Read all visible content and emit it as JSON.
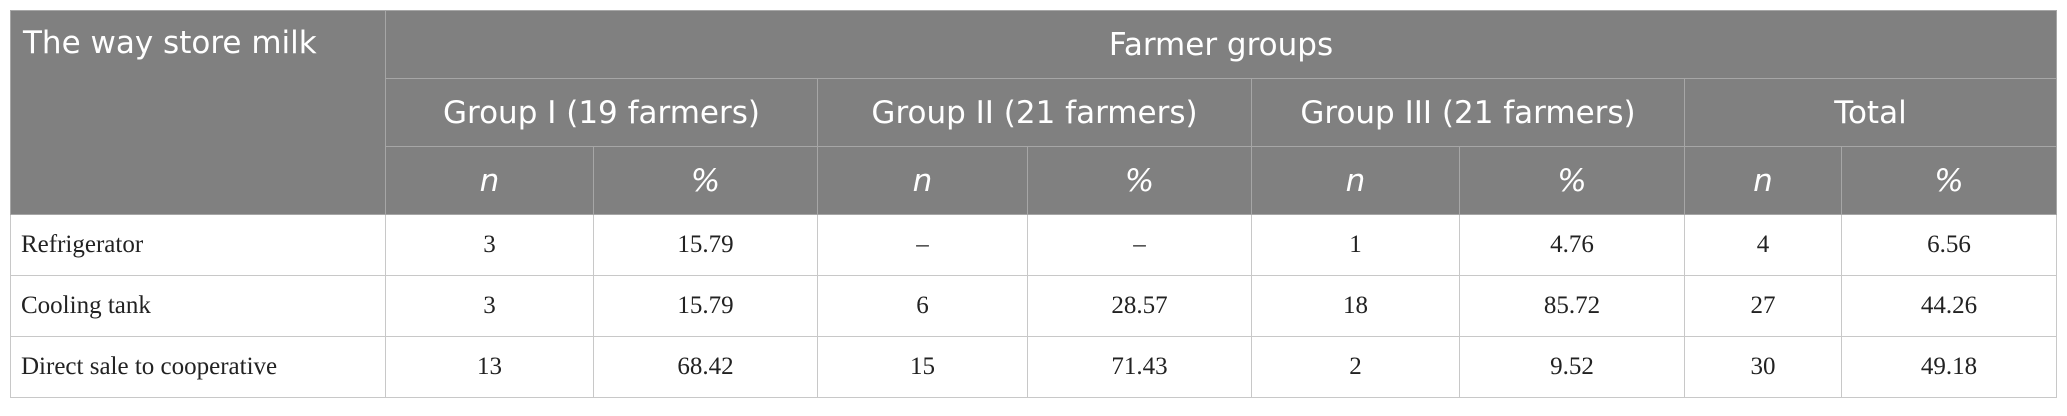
{
  "table": {
    "title": "The way store milk",
    "group_header": "Farmer groups",
    "groups": [
      "Group I (19 farmers)",
      "Group II (21 farmers)",
      "Group III (21 farmers)",
      "Total"
    ],
    "subheaders": [
      "n",
      "%"
    ],
    "rows": [
      {
        "label": "Refrigerator",
        "cells": [
          "3",
          "15.79",
          "–",
          "–",
          "1",
          "4.76",
          "4",
          "6.56"
        ]
      },
      {
        "label": "Cooling tank",
        "cells": [
          "3",
          "15.79",
          "6",
          "28.57",
          "18",
          "85.72",
          "27",
          "44.26"
        ]
      },
      {
        "label": "Direct sale to cooperative",
        "cells": [
          "13",
          "68.42",
          "15",
          "71.43",
          "2",
          "9.52",
          "30",
          "49.18"
        ]
      }
    ]
  }
}
